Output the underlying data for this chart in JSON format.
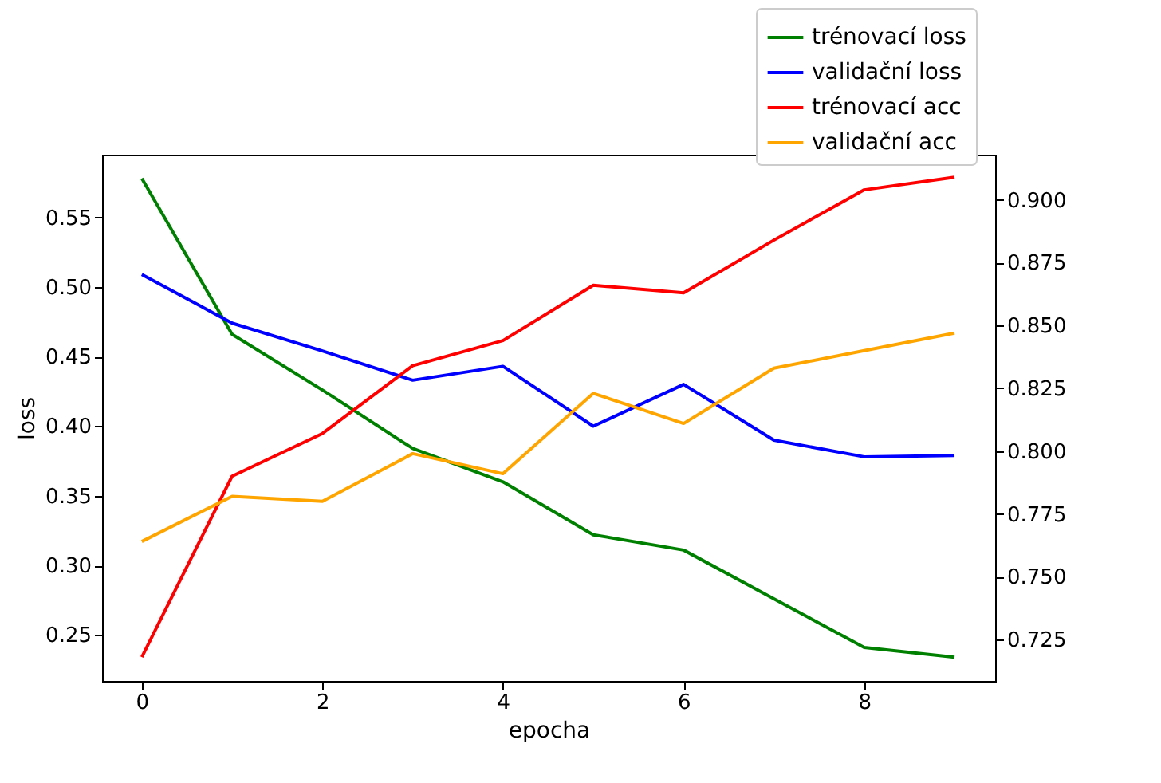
{
  "chart_data": {
    "type": "line",
    "xlabel": "epocha",
    "ylabel": "loss",
    "x": [
      0,
      1,
      2,
      3,
      4,
      5,
      6,
      7,
      8,
      9
    ],
    "series": [
      {
        "name": "trénovací loss",
        "color": "#008000",
        "values": [
          0.578,
          0.466,
          0.426,
          0.384,
          0.36,
          0.322,
          0.311,
          0.276,
          0.241,
          0.234
        ]
      },
      {
        "name": "validační loss",
        "color": "#0000ff",
        "values": [
          0.509,
          0.474,
          0.454,
          0.433,
          0.443,
          0.4,
          0.43,
          0.39,
          0.378,
          0.379
        ]
      },
      {
        "name": "trénovací acc",
        "color": "#ff0000",
        "axis": "y2",
        "values": [
          0.718,
          0.79,
          0.807,
          0.834,
          0.844,
          0.866,
          0.863,
          0.884,
          0.904,
          0.909
        ]
      },
      {
        "name": "validační  acc",
        "color": "#ffa500",
        "axis": "y2",
        "values": [
          0.764,
          0.782,
          0.78,
          0.799,
          0.791,
          0.823,
          0.811,
          0.833,
          0.84,
          0.847
        ]
      }
    ],
    "xlim": [
      -0.44,
      9.45
    ],
    "xticks": [
      0,
      2,
      4,
      6,
      8
    ],
    "ylim": [
      0.217,
      0.595
    ],
    "yticks": [
      {
        "value": 0.25,
        "label": "0.25"
      },
      {
        "value": 0.3,
        "label": "0.30"
      },
      {
        "value": 0.35,
        "label": "0.35"
      },
      {
        "value": 0.4,
        "label": "0.40"
      },
      {
        "value": 0.45,
        "label": "0.45"
      },
      {
        "value": 0.5,
        "label": "0.50"
      },
      {
        "value": 0.55,
        "label": "0.55"
      }
    ],
    "y2lim": [
      0.7085,
      0.918
    ],
    "y2ticks": [
      {
        "value": 0.725,
        "label": "0.725"
      },
      {
        "value": 0.75,
        "label": "0.750"
      },
      {
        "value": 0.775,
        "label": "0.775"
      },
      {
        "value": 0.8,
        "label": "0.800"
      },
      {
        "value": 0.825,
        "label": "0.825"
      },
      {
        "value": 0.85,
        "label": "0.850"
      },
      {
        "value": 0.875,
        "label": "0.875"
      },
      {
        "value": 0.9,
        "label": "0.900"
      }
    ],
    "legend": "top right",
    "grid": false,
    "marker": "none",
    "line_style": "solid"
  }
}
